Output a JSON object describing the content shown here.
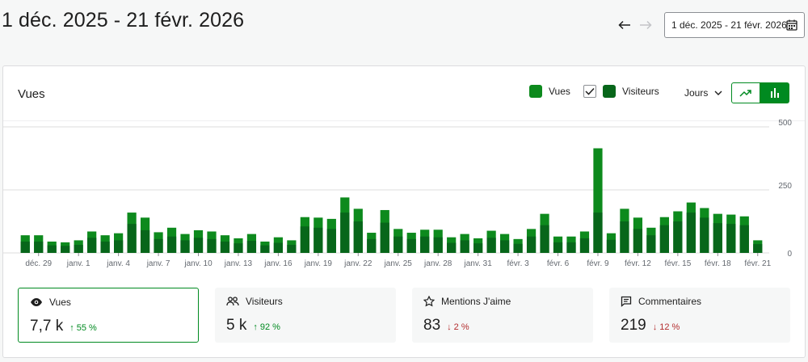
{
  "page": {
    "title": "1 déc. 2025 - 21 févr. 2026"
  },
  "date_picker": {
    "label": "1 déc. 2025 - 21 févr. 2026"
  },
  "card": {
    "title": "Vues",
    "legend": {
      "views_label": "Vues",
      "visitors_label": "Visiteurs",
      "visitors_checked": true
    },
    "period": {
      "label": "Jours"
    },
    "chart_types": [
      "line",
      "bar"
    ],
    "active_chart_type": "bar"
  },
  "colors": {
    "views": "#0d8a1d",
    "visitors": "#07661a",
    "accent": "#008a20",
    "down": "#b32d2e"
  },
  "chart_data": {
    "type": "bar",
    "x_tick_labels": [
      "déc. 29",
      "janv. 1",
      "janv. 4",
      "janv. 7",
      "janv. 10",
      "janv. 13",
      "janv. 16",
      "janv. 19",
      "janv. 22",
      "janv. 25",
      "janv. 28",
      "janv. 31",
      "févr. 3",
      "févr. 6",
      "févr. 9",
      "févr. 12",
      "févr. 15",
      "févr. 18",
      "févr. 21"
    ],
    "first_tick_index": 1,
    "y_ticks": [
      0,
      250,
      500
    ],
    "ylim": [
      0,
      500
    ],
    "series": [
      {
        "name": "Vues",
        "values": [
          70,
          70,
          45,
          42,
          50,
          85,
          70,
          78,
          160,
          140,
          82,
          100,
          75,
          90,
          85,
          70,
          58,
          75,
          45,
          62,
          50,
          142,
          140,
          135,
          220,
          175,
          80,
          170,
          95,
          80,
          92,
          92,
          62,
          75,
          58,
          88,
          75,
          55,
          95,
          155,
          65,
          65,
          85,
          415,
          78,
          175,
          140,
          100,
          142,
          165,
          200,
          178,
          155,
          152,
          145,
          50
        ]
      },
      {
        "name": "Visiteurs",
        "values": [
          45,
          45,
          30,
          28,
          32,
          60,
          45,
          50,
          115,
          90,
          55,
          65,
          50,
          60,
          55,
          45,
          38,
          48,
          30,
          40,
          32,
          105,
          100,
          95,
          160,
          125,
          55,
          120,
          65,
          55,
          65,
          62,
          40,
          50,
          38,
          60,
          50,
          36,
          65,
          110,
          42,
          42,
          58,
          160,
          52,
          125,
          95,
          70,
          110,
          125,
          160,
          140,
          118,
          115,
          110,
          35
        ]
      }
    ]
  },
  "stats": [
    {
      "label": "Vues",
      "icon": "eye-icon",
      "value": "7,7 k",
      "arrow": "↑",
      "delta": "55 %",
      "direction": "up",
      "selected": true
    },
    {
      "label": "Visiteurs",
      "icon": "people-icon",
      "value": "5 k",
      "arrow": "↑",
      "delta": "92 %",
      "direction": "up",
      "selected": false
    },
    {
      "label": "Mentions J'aime",
      "icon": "star-icon",
      "value": "83",
      "arrow": "↓",
      "delta": "2 %",
      "direction": "down",
      "selected": false
    },
    {
      "label": "Commentaires",
      "icon": "comment-icon",
      "value": "219",
      "arrow": "↓",
      "delta": "12 %",
      "direction": "down",
      "selected": false
    }
  ]
}
